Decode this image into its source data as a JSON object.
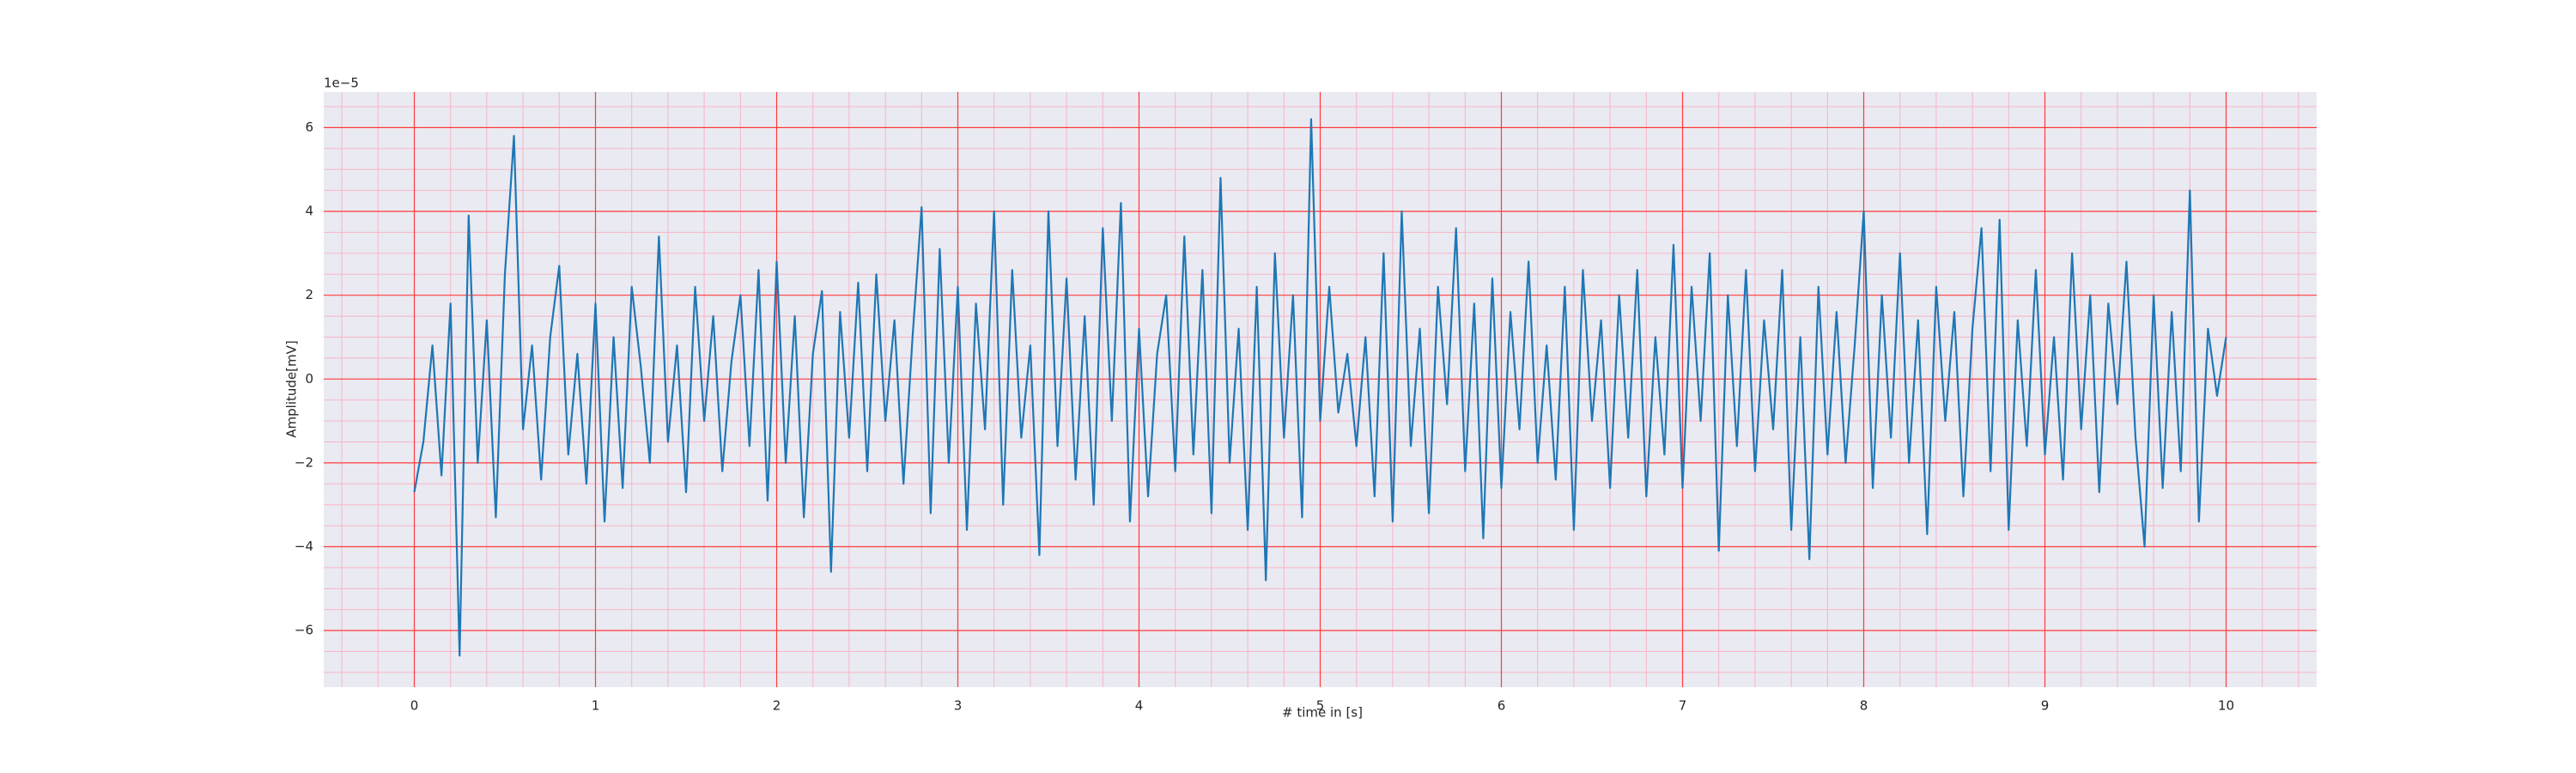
{
  "chart_data": {
    "type": "line",
    "xlabel": "# time in [s]",
    "ylabel": "Amplitude[mV]",
    "y_offset_label": "1e−5",
    "color": "#1f77b4",
    "background": "#eaeaf2",
    "grid": true,
    "grid_color": "#ff3b3b",
    "minor_grid": {
      "xstep": 0.2,
      "ystep": 0.5,
      "color": "#f7b6c6"
    },
    "xlim": [
      -0.5,
      10.5
    ],
    "ylim": [
      -7.35,
      6.85
    ],
    "xticks": [
      0,
      1,
      2,
      3,
      4,
      5,
      6,
      7,
      8,
      9,
      10
    ],
    "yticks": [
      {
        "value": -6,
        "label": "−6"
      },
      {
        "value": -4,
        "label": "−4"
      },
      {
        "value": -2,
        "label": "−2"
      },
      0,
      2,
      4,
      6
    ],
    "x": [
      0.0,
      0.05,
      0.1,
      0.15,
      0.2,
      0.25,
      0.3,
      0.35,
      0.4,
      0.45,
      0.5,
      0.55,
      0.6,
      0.65,
      0.7,
      0.75,
      0.8,
      0.85,
      0.9,
      0.95,
      1.0,
      1.05,
      1.1,
      1.15,
      1.2,
      1.25,
      1.3,
      1.35,
      1.4,
      1.45,
      1.5,
      1.55,
      1.6,
      1.65,
      1.7,
      1.75,
      1.8,
      1.85,
      1.9,
      1.95,
      2.0,
      2.05,
      2.1,
      2.15,
      2.2,
      2.25,
      2.3,
      2.35,
      2.4,
      2.45,
      2.5,
      2.55,
      2.6,
      2.65,
      2.7,
      2.75,
      2.8,
      2.85,
      2.9,
      2.95,
      3.0,
      3.05,
      3.1,
      3.15,
      3.2,
      3.25,
      3.3,
      3.35,
      3.4,
      3.45,
      3.5,
      3.55,
      3.6,
      3.65,
      3.7,
      3.75,
      3.8,
      3.85,
      3.9,
      3.95,
      4.0,
      4.05,
      4.1,
      4.15,
      4.2,
      4.25,
      4.3,
      4.35,
      4.4,
      4.45,
      4.5,
      4.55,
      4.6,
      4.65,
      4.7,
      4.75,
      4.8,
      4.85,
      4.9,
      4.95,
      5.0,
      5.05,
      5.1,
      5.15,
      5.2,
      5.25,
      5.3,
      5.35,
      5.4,
      5.45,
      5.5,
      5.55,
      5.6,
      5.65,
      5.7,
      5.75,
      5.8,
      5.85,
      5.9,
      5.95,
      6.0,
      6.05,
      6.1,
      6.15,
      6.2,
      6.25,
      6.3,
      6.35,
      6.4,
      6.45,
      6.5,
      6.55,
      6.6,
      6.65,
      6.7,
      6.75,
      6.8,
      6.85,
      6.9,
      6.95,
      7.0,
      7.05,
      7.1,
      7.15,
      7.2,
      7.25,
      7.3,
      7.35,
      7.4,
      7.45,
      7.5,
      7.55,
      7.6,
      7.65,
      7.7,
      7.75,
      7.8,
      7.85,
      7.9,
      7.95,
      8.0,
      8.05,
      8.1,
      8.15,
      8.2,
      8.25,
      8.3,
      8.35,
      8.4,
      8.45,
      8.5,
      8.55,
      8.6,
      8.65,
      8.7,
      8.75,
      8.8,
      8.85,
      8.9,
      8.95,
      9.0,
      9.05,
      9.1,
      9.15,
      9.2,
      9.25,
      9.3,
      9.35,
      9.4,
      9.45,
      9.5,
      9.55,
      9.6,
      9.65,
      9.7,
      9.75,
      9.8,
      9.85,
      9.9,
      9.95,
      10.0
    ],
    "values": [
      -2.7,
      -1.5,
      0.8,
      -2.3,
      1.8,
      -6.6,
      3.9,
      -2.0,
      1.4,
      -3.3,
      2.5,
      5.8,
      -1.2,
      0.8,
      -2.4,
      1.0,
      2.7,
      -1.8,
      0.6,
      -2.5,
      1.8,
      -3.4,
      1.0,
      -2.6,
      2.2,
      0.3,
      -2.0,
      3.4,
      -1.5,
      0.8,
      -2.7,
      2.2,
      -1.0,
      1.5,
      -2.2,
      0.4,
      2.0,
      -1.6,
      2.6,
      -2.9,
      2.8,
      -2.0,
      1.5,
      -3.3,
      0.6,
      2.1,
      -4.6,
      1.6,
      -1.4,
      2.3,
      -2.2,
      2.5,
      -1.0,
      1.4,
      -2.5,
      1.0,
      4.1,
      -3.2,
      3.1,
      -2.0,
      2.2,
      -3.6,
      1.8,
      -1.2,
      4.0,
      -3.0,
      2.6,
      -1.4,
      0.8,
      -4.2,
      4.0,
      -1.6,
      2.4,
      -2.4,
      1.5,
      -3.0,
      3.6,
      -1.0,
      4.2,
      -3.4,
      1.2,
      -2.8,
      0.6,
      2.0,
      -2.2,
      3.4,
      -1.8,
      2.6,
      -3.2,
      4.8,
      -2.0,
      1.2,
      -3.6,
      2.2,
      -4.8,
      3.0,
      -1.4,
      2.0,
      -3.3,
      6.2,
      -1.0,
      2.2,
      -0.8,
      0.6,
      -1.6,
      1.0,
      -2.8,
      3.0,
      -3.4,
      4.0,
      -1.6,
      1.2,
      -3.2,
      2.2,
      -0.6,
      3.6,
      -2.2,
      1.8,
      -3.8,
      2.4,
      -2.6,
      1.6,
      -1.2,
      2.8,
      -2.0,
      0.8,
      -2.4,
      2.2,
      -3.6,
      2.6,
      -1.0,
      1.4,
      -2.6,
      2.0,
      -1.4,
      2.6,
      -2.8,
      1.0,
      -1.8,
      3.2,
      -2.6,
      2.2,
      -1.0,
      3.0,
      -4.1,
      2.0,
      -1.6,
      2.6,
      -2.2,
      1.4,
      -1.2,
      2.6,
      -3.6,
      1.0,
      -4.3,
      2.2,
      -1.8,
      1.6,
      -2.0,
      0.8,
      4.0,
      -2.6,
      2.0,
      -1.4,
      3.0,
      -2.0,
      1.4,
      -3.7,
      2.2,
      -1.0,
      1.6,
      -2.8,
      1.2,
      3.6,
      -2.2,
      3.8,
      -3.6,
      1.4,
      -1.6,
      2.6,
      -1.8,
      1.0,
      -2.4,
      3.0,
      -1.2,
      2.0,
      -2.7,
      1.8,
      -0.6,
      2.8,
      -1.4,
      -4.0,
      2.0,
      -2.6,
      1.6,
      -2.2,
      4.5,
      -3.4,
      1.2,
      -0.4,
      1.0
    ]
  }
}
